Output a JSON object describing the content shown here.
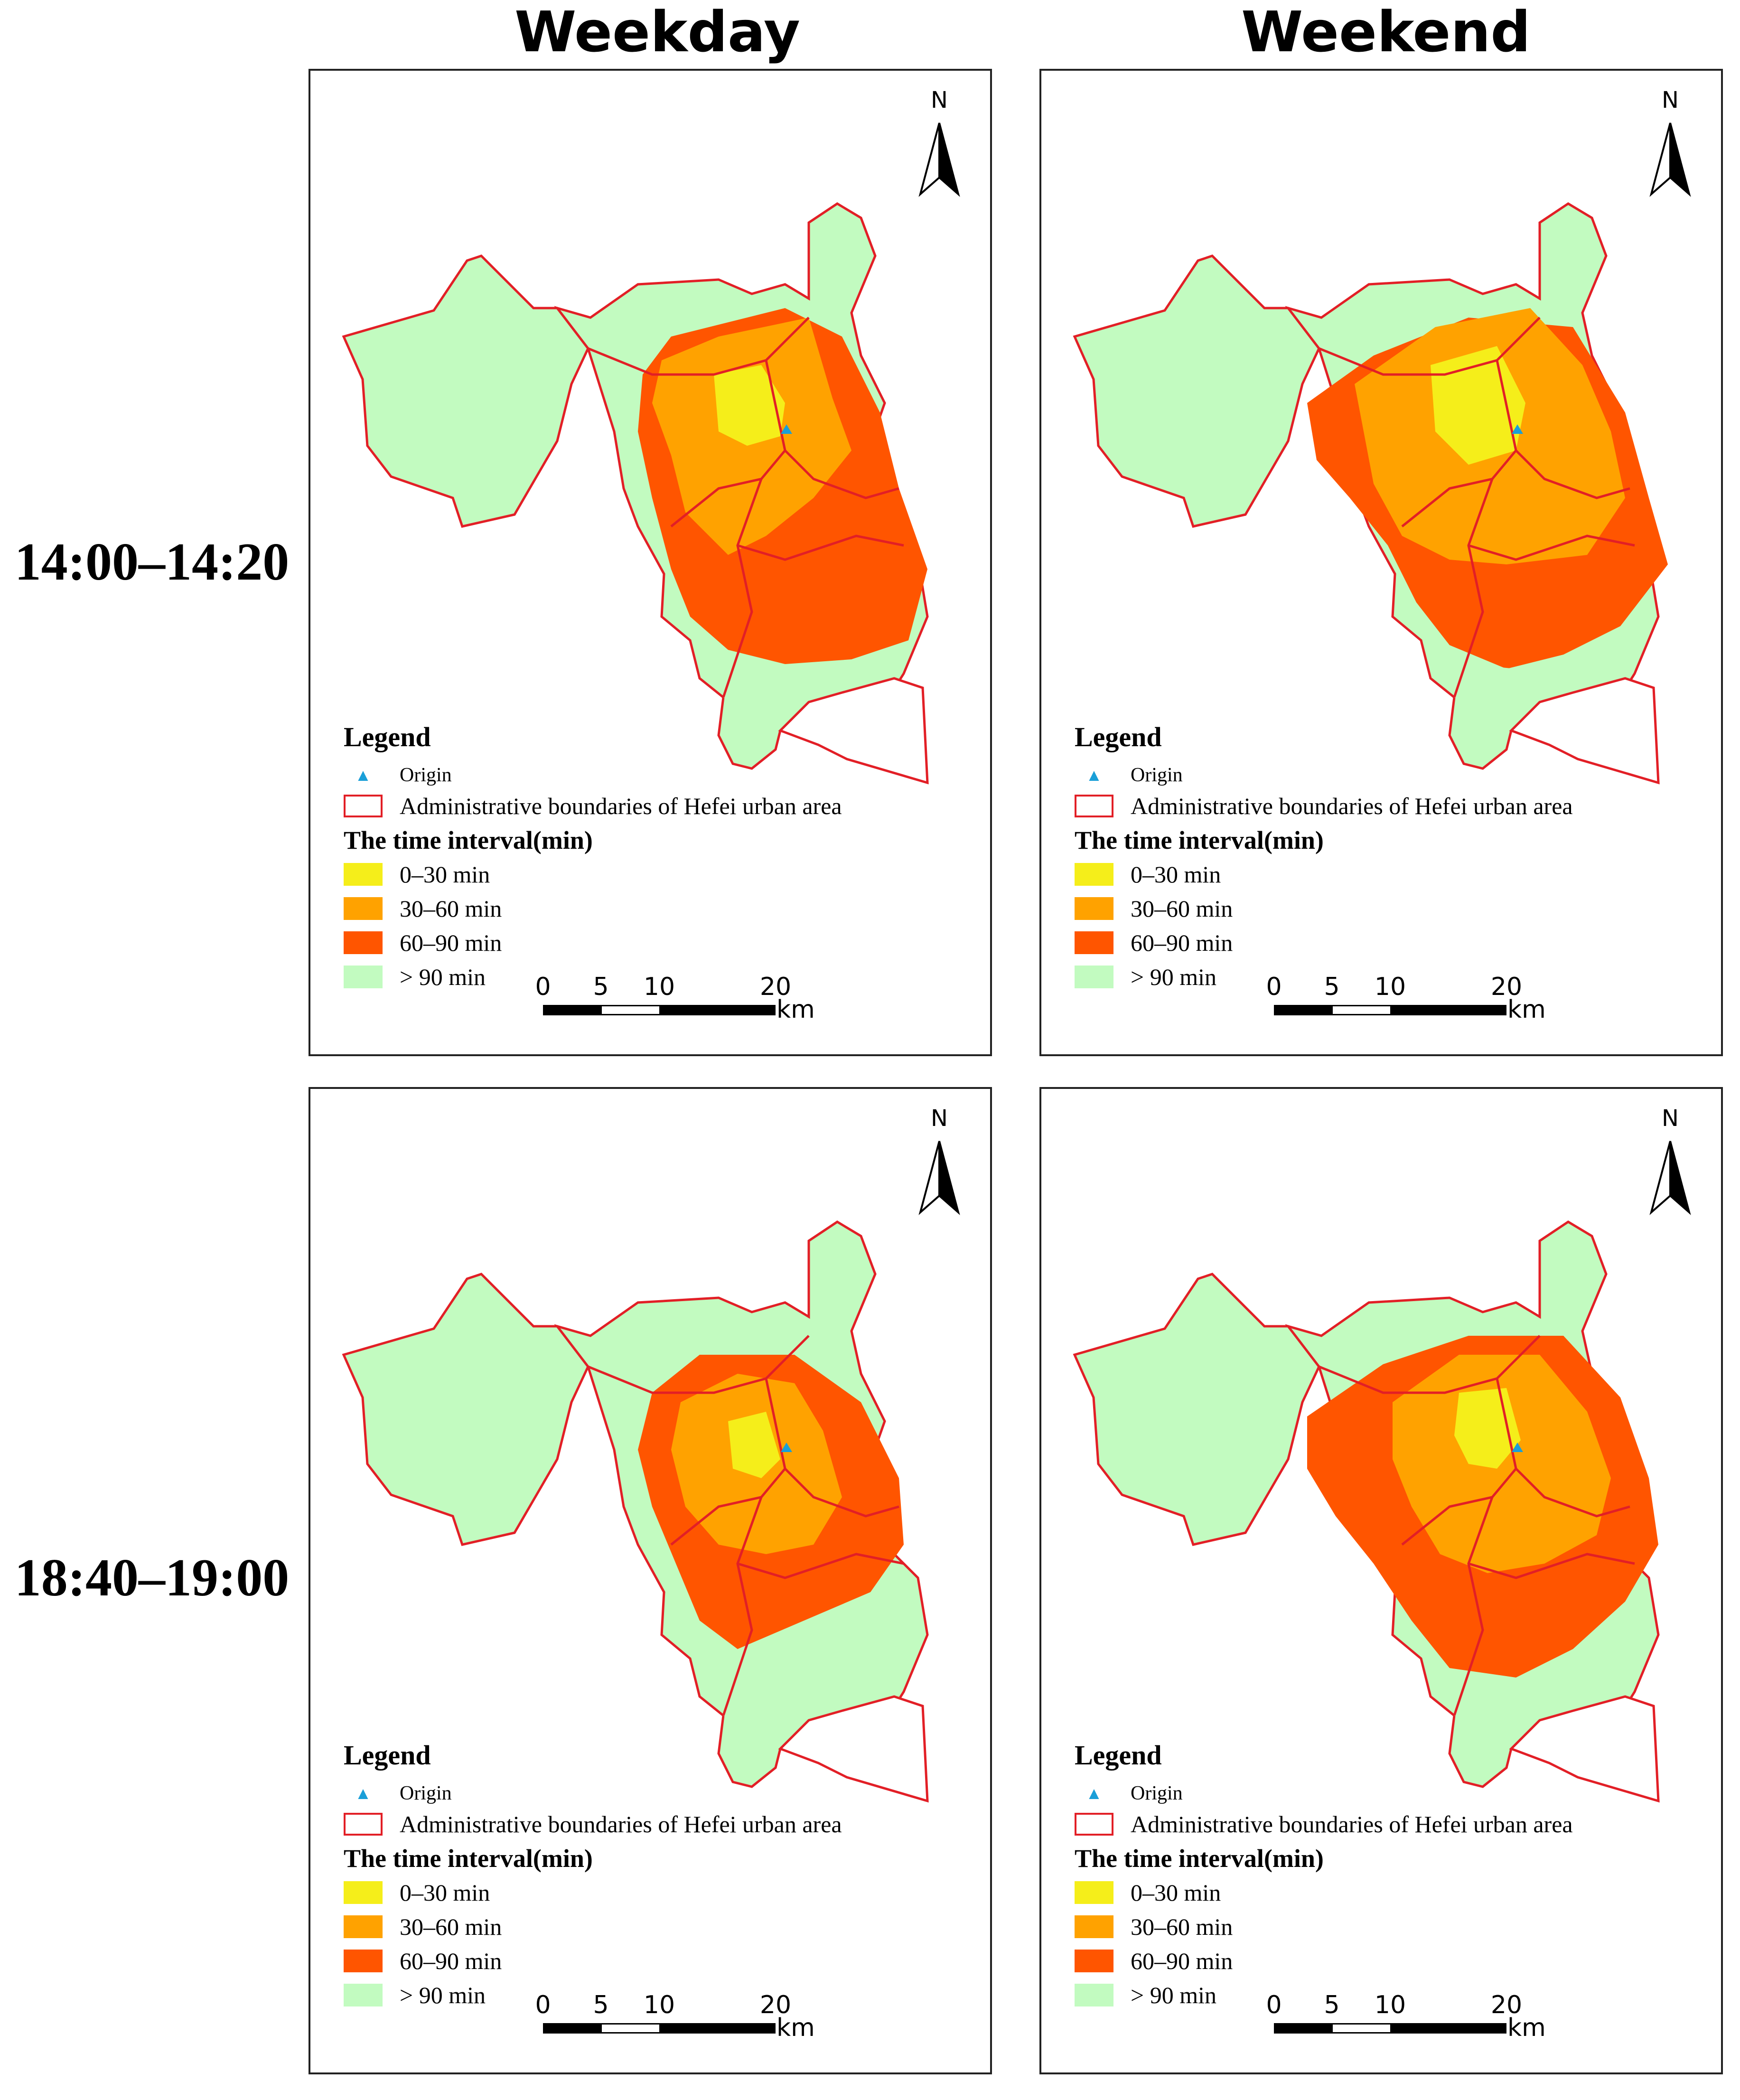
{
  "column_headers": [
    "Weekday",
    "Weekend"
  ],
  "row_headers": [
    "14:00–14:20",
    "18:40–19:00"
  ],
  "colors": {
    "band_0_30": "#f5ee1a",
    "band_30_60": "#ffa200",
    "band_60_90": "#ff5500",
    "band_gt90": "#c2fbc0",
    "boundary": "#e21f26",
    "origin": "#1a9fd8"
  },
  "north_label": "N",
  "legend": {
    "title": "Legend",
    "origin_label": "Origin",
    "boundary_label": "Administrative boundaries of Hefei urban area",
    "interval_title": "The time interval(min)",
    "bands": [
      "0–30 min",
      "30–60 min",
      "60–90 min",
      "> 90 min"
    ]
  },
  "scale": {
    "ticks": [
      "0",
      "5",
      "10",
      "20"
    ],
    "unit": "km"
  },
  "panels": [
    {
      "name": "weekday-14",
      "period": "14:00–14:20",
      "day": "Weekday"
    },
    {
      "name": "weekend-14",
      "period": "14:00–14:20",
      "day": "Weekend"
    },
    {
      "name": "weekday-18",
      "period": "18:40–19:00",
      "day": "Weekday"
    },
    {
      "name": "weekend-18",
      "period": "18:40–19:00",
      "day": "Weekend"
    }
  ]
}
